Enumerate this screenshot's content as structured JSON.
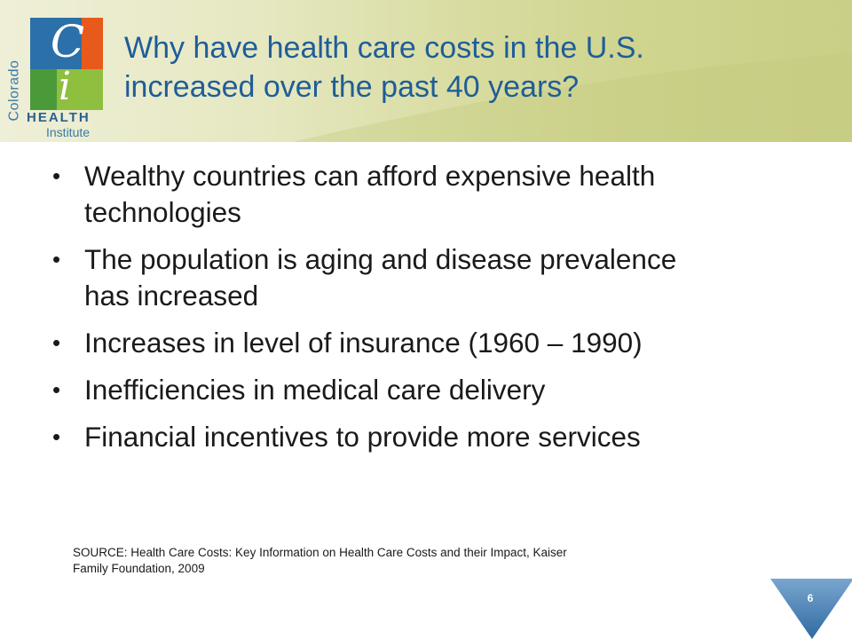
{
  "logo": {
    "letter_c": "C",
    "letter_i": "i",
    "word_colorado": "Colorado",
    "word_health": "HEALTH",
    "word_institute": "Institute",
    "colors": {
      "orange": "#e85a1b",
      "blue": "#2b70a8",
      "green": "#4a9a3a",
      "lime": "#8fbf3f"
    }
  },
  "slide": {
    "title_line1": "Why have health care costs in the U.S.",
    "title_line2": "increased over the past 40 years?",
    "bullets": [
      {
        "line1": "Wealthy countries can afford expensive health",
        "line2": "technologies"
      },
      {
        "line1": "The population is aging and disease prevalence",
        "line2": "has increased"
      },
      {
        "line1": "Increases in level of insurance (1960 – 1990)",
        "line2": ""
      },
      {
        "line1": "Inefficiencies in medical care delivery",
        "line2": ""
      },
      {
        "line1": "Financial incentives to provide more services",
        "line2": ""
      }
    ],
    "bullet_symbol": "•",
    "source_line1": "SOURCE: Health Care Costs:  Key Information on Health Care Costs and their Impact, Kaiser",
    "source_line2": "Family Foundation, 2009",
    "page_number": "6",
    "colors": {
      "title": "#1f5d98",
      "banner_light": "#eeefd7",
      "banner_dark": "#c9cf86",
      "marker": "#4f87b8"
    }
  }
}
